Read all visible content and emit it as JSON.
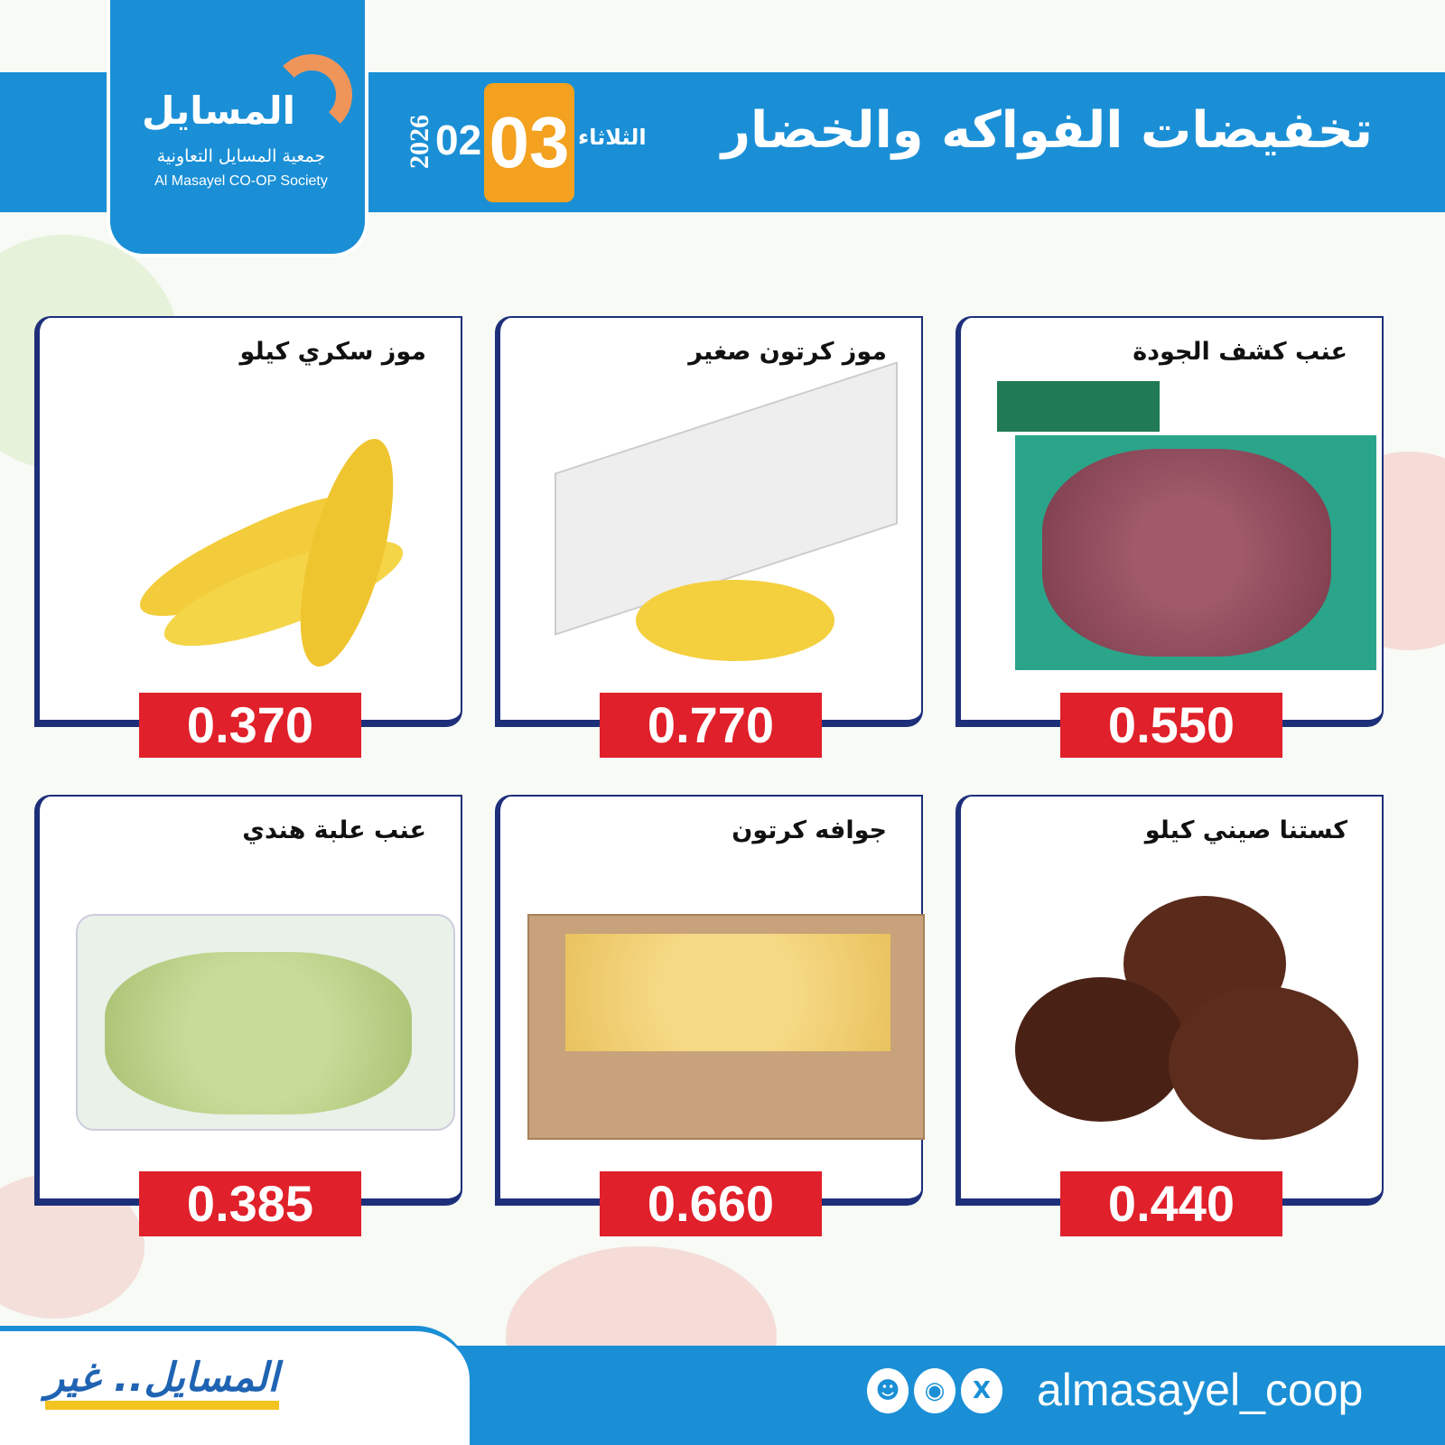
{
  "header": {
    "logo": {
      "name_ar": "المسايل",
      "society_ar": "جمعية المسايل التعاونية",
      "society_en": "Al Masayel CO-OP Society"
    },
    "title": "تخفيضات الفواكه والخضار",
    "date": {
      "weekday": "الثلاثاء",
      "day": "03",
      "month": "02",
      "year": "2026"
    }
  },
  "products": [
    {
      "name": "موز سكري كيلو",
      "price": "0.370",
      "image": "bananas"
    },
    {
      "name": "موز كرتون صغير",
      "price": "0.770",
      "image": "banana-carton"
    },
    {
      "name": "عنب كشف الجودة",
      "price": "0.550",
      "image": "red-grapes-box"
    },
    {
      "name": "عنب علبة هندي",
      "price": "0.385",
      "image": "green-grapes-pack"
    },
    {
      "name": "جوافه كرتون",
      "price": "0.660",
      "image": "guava-carton"
    },
    {
      "name": "كستنا صيني كيلو",
      "price": "0.440",
      "image": "chestnuts"
    }
  ],
  "footer": {
    "slogan": "المسايل.. غير",
    "social_icons": [
      "snapchat-icon",
      "instagram-icon",
      "x-icon"
    ],
    "handle": "almasayel_coop"
  },
  "colors": {
    "brand_blue": "#1a8fd6",
    "date_orange": "#f3a11f",
    "price_red": "#e0202a",
    "card_border": "#1e2f7a"
  }
}
